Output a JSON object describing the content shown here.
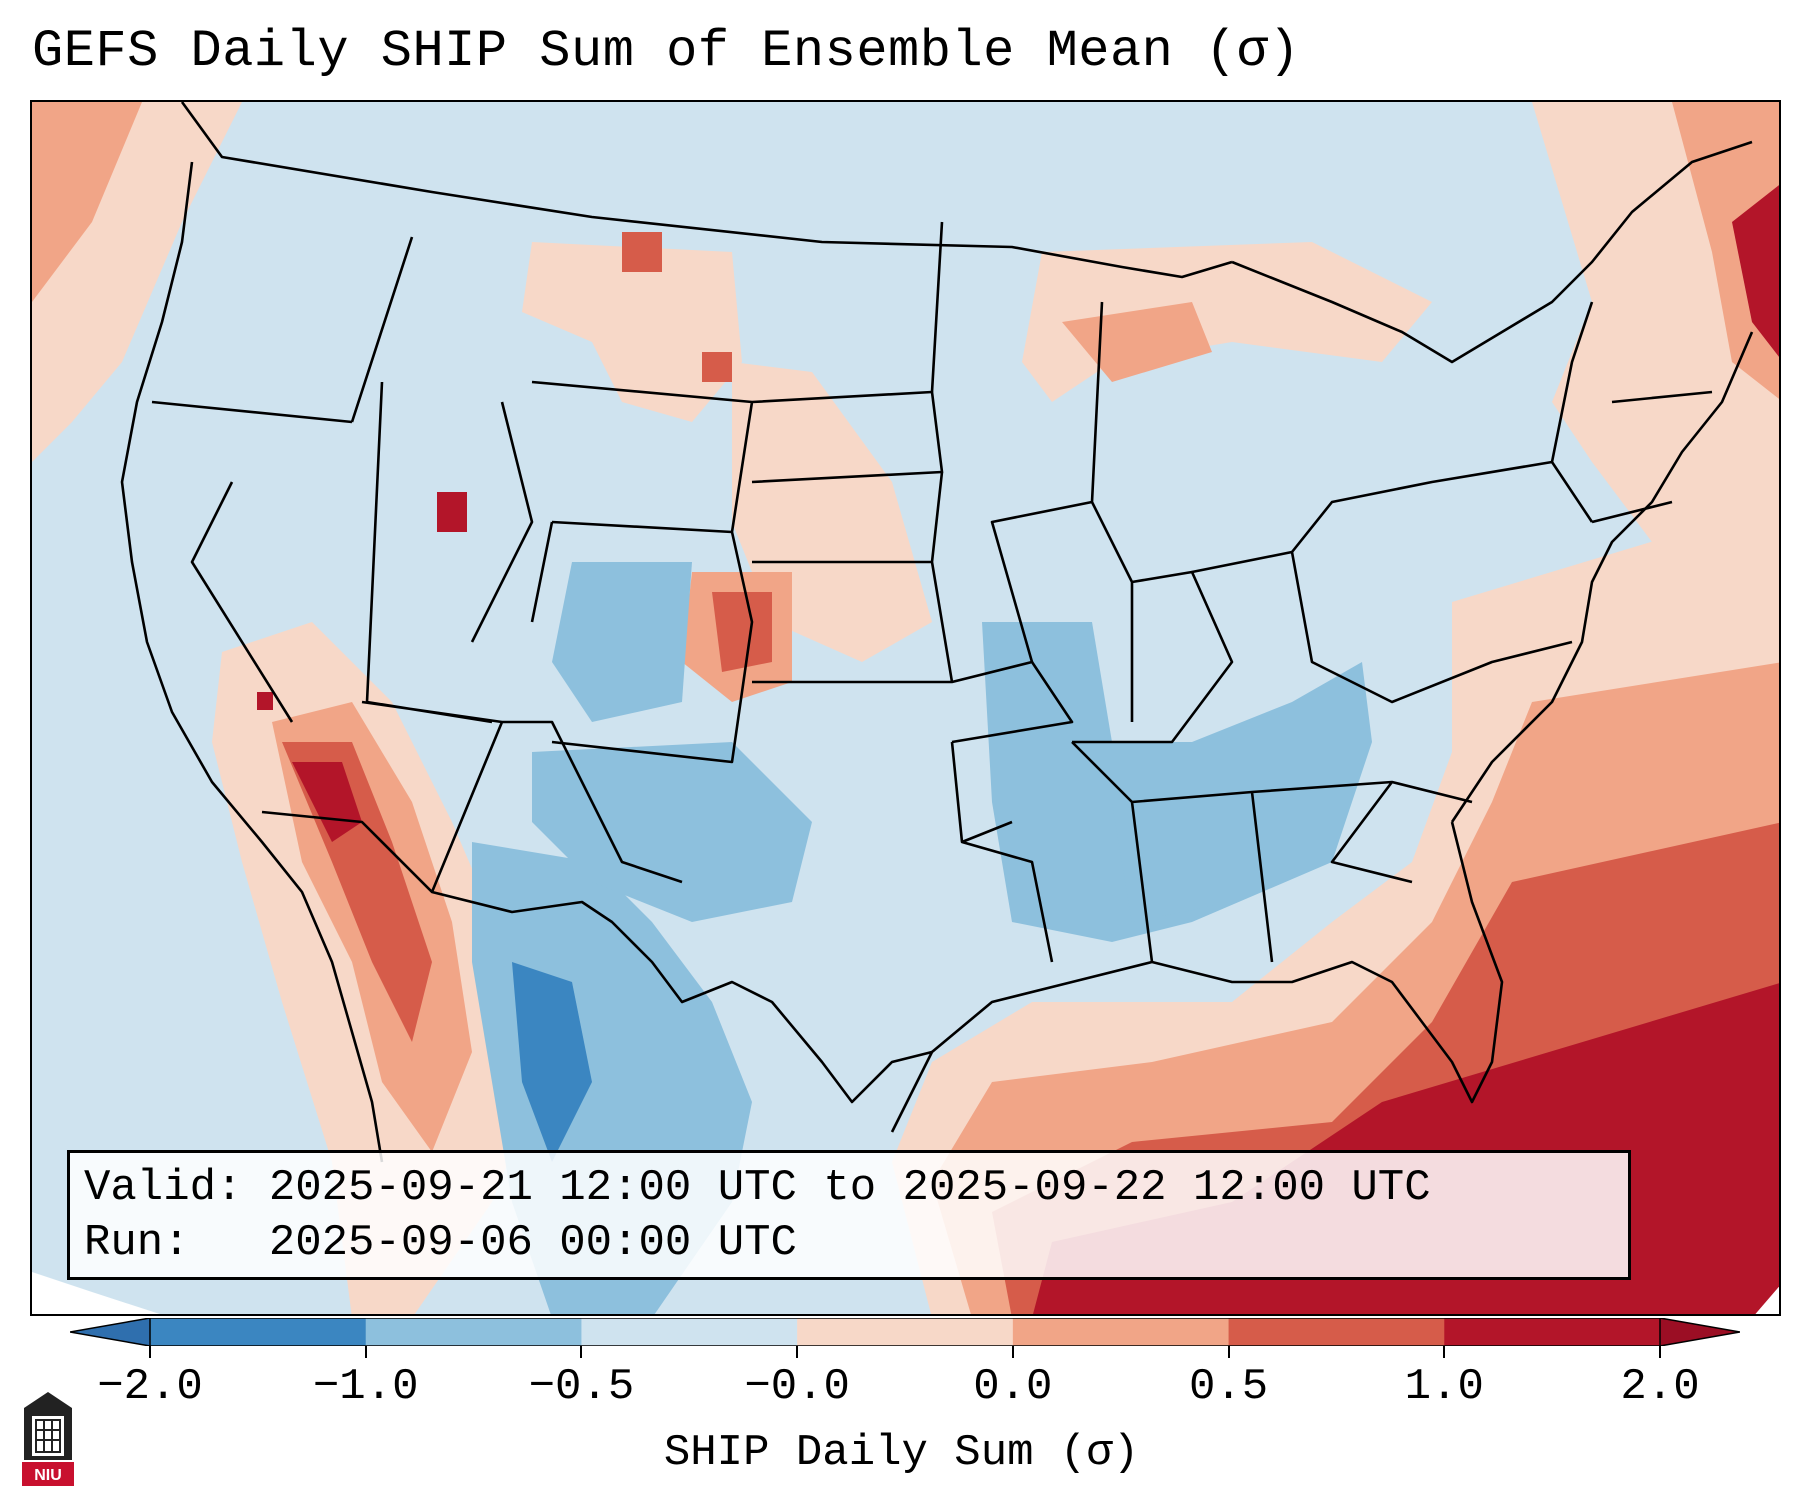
{
  "title": "GEFS Daily SHIP Sum of Ensemble Mean (σ)",
  "info": {
    "valid": "Valid: 2025-09-21 12:00 UTC to 2025-09-22 12:00 UTC",
    "run": "Run:   2025-09-06 00:00 UTC"
  },
  "colorbar": {
    "label": "SHIP Daily Sum (σ)",
    "ticks": [
      "−2.0",
      "−1.0",
      "−0.5",
      "−0.0",
      "0.0",
      "0.5",
      "1.0",
      "2.0"
    ],
    "colors": [
      "#3b86c1",
      "#8dc0dd",
      "#cfe3ef",
      "#f7d8c8",
      "#f1a587",
      "#d65c4a",
      "#b31529"
    ],
    "extend_low": "#2f6fae",
    "extend_high": "#9b0e24"
  },
  "logo": {
    "icon": "niu-logo-icon",
    "text": "NIU"
  }
}
